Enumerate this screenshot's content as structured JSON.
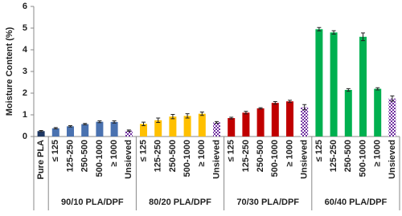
{
  "chart_data": {
    "type": "bar",
    "y_label": "Moisture Content (%)",
    "ylim": [
      0,
      6
    ],
    "yticks": [
      0,
      1,
      2,
      3,
      4,
      5,
      6
    ],
    "checker_color": "#7030a0",
    "groups": [
      {
        "name": null,
        "categories": [
          "Pure PLA"
        ],
        "values": [
          0.25
        ],
        "errors": [
          0.03
        ],
        "colors": [
          "#1f3864"
        ]
      },
      {
        "name": "90/10 PLA/DPF",
        "categories": [
          "≤ 125",
          "125-250",
          "250-500",
          "500-1000",
          "≥ 1000",
          "Unsieved"
        ],
        "values": [
          0.38,
          0.47,
          0.57,
          0.68,
          0.67,
          0.27
        ],
        "errors": [
          0.03,
          0.03,
          0.03,
          0.04,
          0.05,
          0.03
        ],
        "colors": [
          "#4a72b0",
          "#4a72b0",
          "#4a72b0",
          "#4a72b0",
          "#4a72b0",
          "#7030a0"
        ]
      },
      {
        "name": "80/20 PLA/DPF",
        "categories": [
          "≤ 125",
          "125-250",
          "250-500",
          "500-1000",
          "≥ 1000",
          "Unsieved"
        ],
        "values": [
          0.58,
          0.75,
          0.92,
          0.95,
          1.05,
          0.65
        ],
        "errors": [
          0.08,
          0.1,
          0.1,
          0.1,
          0.08,
          0.04
        ],
        "colors": [
          "#ffc000",
          "#ffc000",
          "#ffc000",
          "#ffc000",
          "#ffc000",
          "#7030a0"
        ]
      },
      {
        "name": "70/30 PLA/DPF",
        "categories": [
          "≤ 125",
          "125-250",
          "250-500",
          "500-1000",
          "≥ 1000",
          "Unsieved"
        ],
        "values": [
          0.85,
          1.1,
          1.3,
          1.55,
          1.62,
          1.35
        ],
        "errors": [
          0.04,
          0.06,
          0.03,
          0.06,
          0.05,
          0.12
        ],
        "colors": [
          "#c00000",
          "#c00000",
          "#c00000",
          "#c00000",
          "#c00000",
          "#7030a0"
        ]
      },
      {
        "name": "60/40 PLA/DPF",
        "categories": [
          "≤ 125",
          "125-250",
          "250-500",
          "500-1000",
          "≥ 1000",
          "Unsieved"
        ],
        "values": [
          4.95,
          4.8,
          2.15,
          4.6,
          2.2,
          1.75
        ],
        "errors": [
          0.08,
          0.08,
          0.06,
          0.18,
          0.05,
          0.12
        ],
        "colors": [
          "#00b050",
          "#00b050",
          "#00b050",
          "#00b050",
          "#00b050",
          "#7030a0"
        ]
      }
    ]
  }
}
